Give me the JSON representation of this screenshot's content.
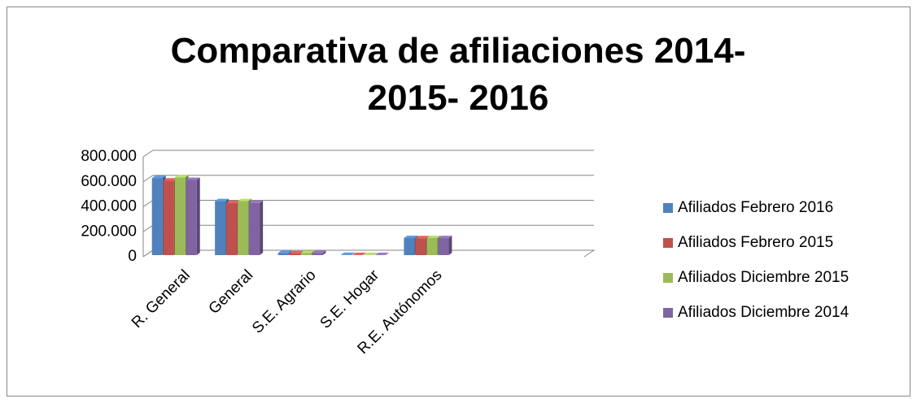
{
  "chart_data": {
    "type": "bar3d",
    "title": "Comparativa de afiliaciones 2014- 2015- 2016",
    "categories": [
      "R. General",
      "General",
      "S.E. Agrario",
      "S.E. Hogar",
      "R.E. Autónomos",
      null,
      null
    ],
    "series": [
      {
        "name": "Afiliados Febrero 2016",
        "color": "#4f81bd",
        "values": [
          630000,
          445000,
          30000,
          15000,
          150000,
          null,
          null
        ]
      },
      {
        "name": "Afiliados Febrero 2015",
        "color": "#c0504d",
        "values": [
          610000,
          430000,
          28000,
          14000,
          148000,
          null,
          null
        ]
      },
      {
        "name": "Afiliados  Diciembre 2015",
        "color": "#9bbb59",
        "values": [
          635000,
          445000,
          30000,
          15000,
          150000,
          null,
          null
        ]
      },
      {
        "name": "Afiliados Diciembre 2014",
        "color": "#8064a2",
        "values": [
          615000,
          430000,
          29000,
          14000,
          149000,
          null,
          null
        ]
      }
    ],
    "ylim": [
      0,
      800000
    ],
    "yticks": [
      0,
      {
        "value": 200000,
        "label": "200.000"
      },
      {
        "value": 400000,
        "label": "400.000"
      },
      {
        "value": 600000,
        "label": "600.000"
      },
      {
        "value": 800000,
        "label": "800.000"
      }
    ],
    "grid": true,
    "legend": "right"
  }
}
